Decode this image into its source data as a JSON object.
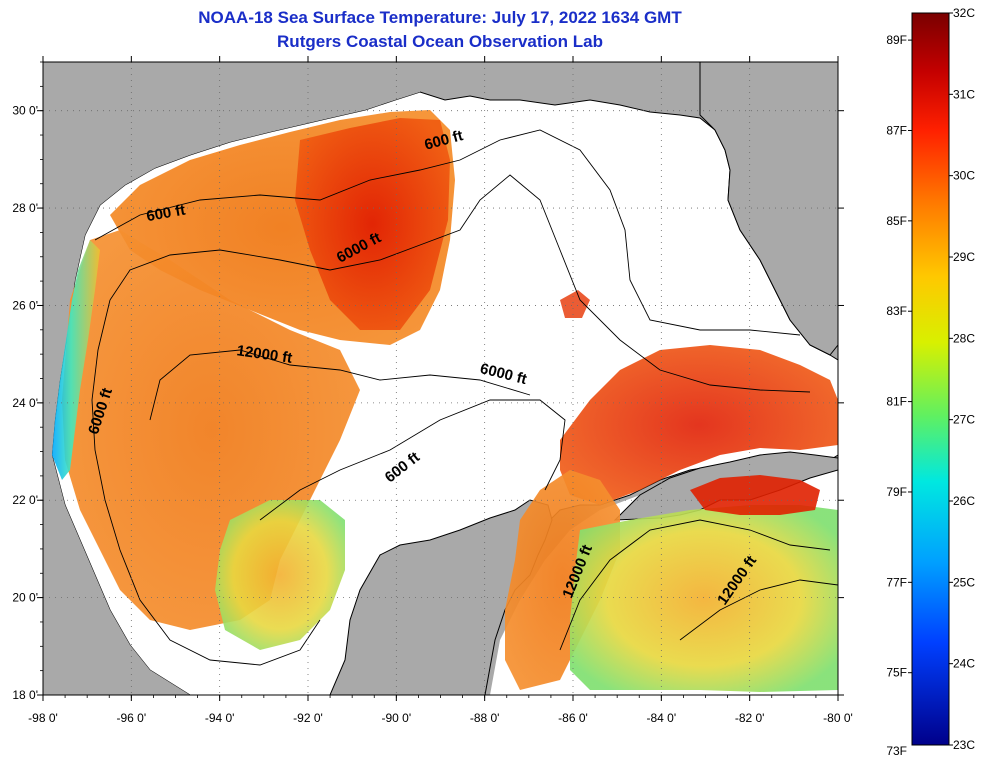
{
  "title": {
    "line1": "NOAA-18 Sea Surface Temperature:  July 17, 2022 1634 GMT",
    "line2": "Rutgers Coastal Ocean Observation Lab"
  },
  "map": {
    "lon_range": [
      -98,
      -80
    ],
    "lat_range": [
      18,
      31
    ],
    "lon_ticks": [
      {
        "lon": -98,
        "label": "-98 0'"
      },
      {
        "lon": -96,
        "label": "-96 0'"
      },
      {
        "lon": -94,
        "label": "-94 0'"
      },
      {
        "lon": -92,
        "label": "-92 0'"
      },
      {
        "lon": -90,
        "label": "-90 0'"
      },
      {
        "lon": -88,
        "label": "-88 0'"
      },
      {
        "lon": -86,
        "label": "-86 0'"
      },
      {
        "lon": -84,
        "label": "-84 0'"
      },
      {
        "lon": -82,
        "label": "-82 0'"
      },
      {
        "lon": -80,
        "label": "-80 0'"
      }
    ],
    "lat_ticks": [
      {
        "lat": 30,
        "label": "30 0'"
      },
      {
        "lat": 28,
        "label": "28 0'"
      },
      {
        "lat": 26,
        "label": "26 0'"
      },
      {
        "lat": 24,
        "label": "24 0'"
      },
      {
        "lat": 22,
        "label": "22 0'"
      },
      {
        "lat": 20,
        "label": "20 0'"
      },
      {
        "lat": 18,
        "label": "18 0'"
      }
    ],
    "contour_labels": [
      {
        "text": "600 ft",
        "lon": -88.9,
        "lat": 29.3,
        "rotate": -15
      },
      {
        "text": "600 ft",
        "lon": -95.2,
        "lat": 27.8,
        "rotate": -10
      },
      {
        "text": "6000 ft",
        "lon": -90.8,
        "lat": 27.1,
        "rotate": -28
      },
      {
        "text": "12000 ft",
        "lon": -93.0,
        "lat": 24.9,
        "rotate": 8
      },
      {
        "text": "6000 ft",
        "lon": -87.6,
        "lat": 24.5,
        "rotate": 14
      },
      {
        "text": "6000 ft",
        "lon": -96.6,
        "lat": 23.8,
        "rotate": -72
      },
      {
        "text": "600 ft",
        "lon": -89.8,
        "lat": 22.6,
        "rotate": -38
      },
      {
        "text": "12000 ft",
        "lon": -85.8,
        "lat": 20.5,
        "rotate": -68
      },
      {
        "text": "12000 ft",
        "lon": -82.2,
        "lat": 20.3,
        "rotate": -55
      }
    ],
    "colors": {
      "land": "#a9a9a9",
      "ocean_nodata": "#ffffff",
      "coastline": "#000000",
      "grid": "#777777",
      "title": "#1a2ec8"
    }
  },
  "colorbar": {
    "min_c": 23,
    "max_c": 32,
    "celsius_ticks": [
      "32C",
      "31C",
      "30C",
      "29C",
      "28C",
      "27C",
      "26C",
      "25C",
      "24C",
      "23C"
    ],
    "fahrenheit_ticks": [
      "89F",
      "87F",
      "85F",
      "83F",
      "81F",
      "79F",
      "77F",
      "75F",
      "73F"
    ],
    "fahrenheit_values": [
      89,
      87,
      85,
      83,
      81,
      79,
      77,
      75,
      73
    ]
  }
}
